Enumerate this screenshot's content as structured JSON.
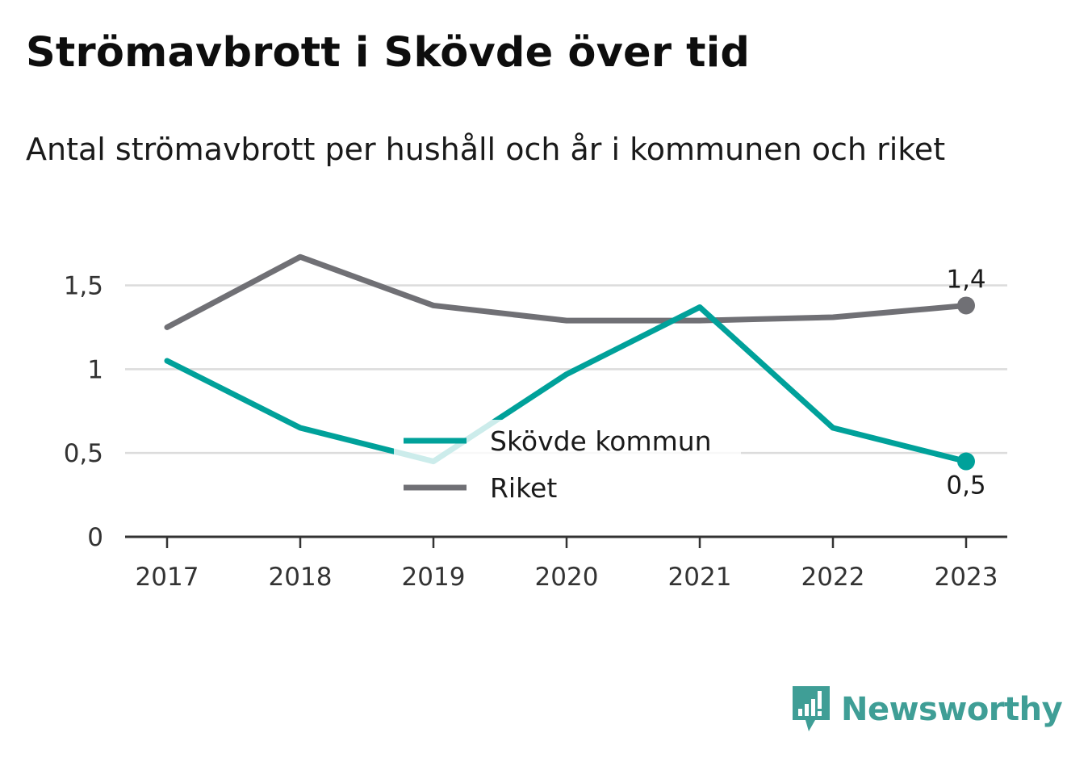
{
  "title": "Strömavbrott i Skövde över tid",
  "subtitle": "Antal strömavbrott per hushåll och år i kommunen och riket",
  "brand": {
    "name": "Newsworthy",
    "icon": "newsworthy-logo-icon"
  },
  "chart_data": {
    "type": "line",
    "categories": [
      "2017",
      "2018",
      "2019",
      "2020",
      "2021",
      "2022",
      "2023"
    ],
    "y_ticks": [
      {
        "value": 0,
        "label": "0"
      },
      {
        "value": 0.5,
        "label": "0,5"
      },
      {
        "value": 1,
        "label": "1"
      },
      {
        "value": 1.5,
        "label": "1,5"
      }
    ],
    "ylim": [
      0,
      1.7
    ],
    "grid": true,
    "legend_position": "center",
    "series": [
      {
        "name": "Skövde kommun",
        "color": "#00a19a",
        "values": [
          1.05,
          0.65,
          0.45,
          0.97,
          1.37,
          0.65,
          0.45
        ],
        "end_label": "0,5"
      },
      {
        "name": "Riket",
        "color": "#707075",
        "values": [
          1.25,
          1.67,
          1.38,
          1.29,
          1.29,
          1.31,
          1.38
        ],
        "end_label": "1,4"
      }
    ]
  }
}
